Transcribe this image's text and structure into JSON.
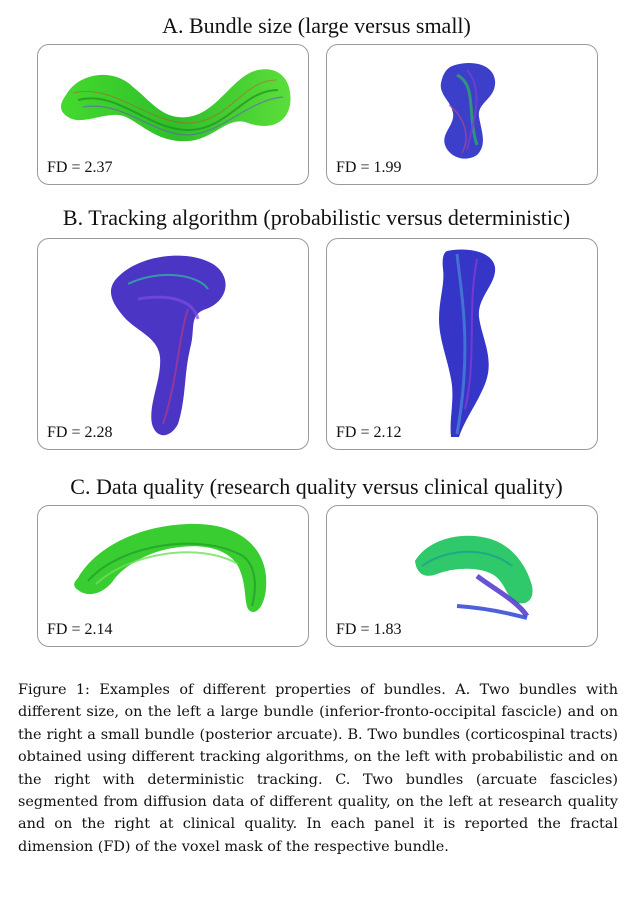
{
  "sections": [
    {
      "title": "A. Bundle size (large versus small)",
      "panels": [
        {
          "fd": "FD = 2.37"
        },
        {
          "fd": "FD = 1.99"
        }
      ]
    },
    {
      "title": "B. Tracking algorithm (probabilistic versus deterministic)",
      "panels": [
        {
          "fd": "FD = 2.28"
        },
        {
          "fd": "FD = 2.12"
        }
      ]
    },
    {
      "title": "C. Data quality (research quality versus clinical quality)",
      "panels": [
        {
          "fd": "FD = 2.14"
        },
        {
          "fd": "FD = 1.83"
        }
      ]
    }
  ],
  "caption": "Figure 1: Examples of different properties of bundles. A. Two bundles with different size, on the left a large bundle (inferior-fronto-occipital fascicle) and on the right a small bundle (posterior arcuate). B. Two bundles (corticospinal tracts) obtained using different tracking algorithms, on the left with probabilistic and on the right with deterministic tracking. C. Two bundles (arcuate fascicles) segmented from diffusion data of different quality, on the left at research quality and on the right at clinical quality. In each panel it is reported the fractal dimension (FD) of the voxel mask of the respective bundle.",
  "colors": {
    "green": "#3bd12a",
    "blue": "#3a3fd8",
    "purple": "#6a2fb8",
    "teal": "#2aa39a",
    "border": "#9a9a9a"
  }
}
